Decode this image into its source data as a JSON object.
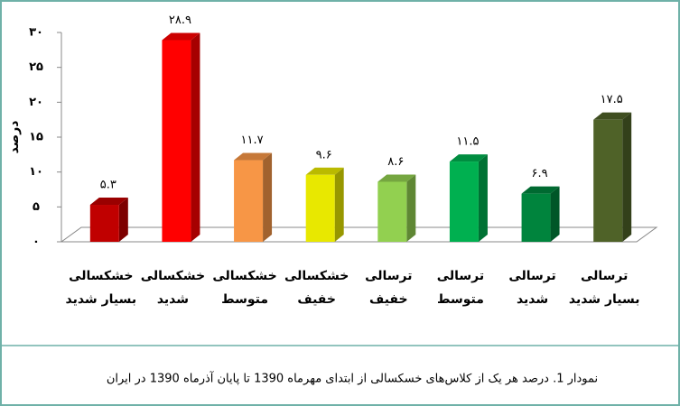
{
  "chart_data": {
    "type": "bar3d",
    "title": "نمودار 1. درصد هر یک از کلاس‌های خسکسالی از ابتدای مهرماه 1390 تا پایان آذرماه 1390 در ایران",
    "y_label": "درصد",
    "categories": [
      [
        "خشکسالی",
        "بسیار شدید"
      ],
      [
        "خشکسالی",
        "شدید"
      ],
      [
        "خشکسالی",
        "متوسط"
      ],
      [
        "خشکسالی",
        "خفیف"
      ],
      [
        "ترسالی",
        "خفیف"
      ],
      [
        "ترسالی",
        "متوسط"
      ],
      [
        "ترسالی",
        "شدید"
      ],
      [
        "ترسالی",
        "بسیار شدید"
      ]
    ],
    "values": [
      5.3,
      28.9,
      11.7,
      9.6,
      8.6,
      11.5,
      6.9,
      17.5
    ],
    "value_labels": [
      "۵.۳",
      "۲۸.۹",
      "۱۱.۷",
      "۹.۶",
      "۸.۶",
      "۱۱.۵",
      "۶.۹",
      "۱۷.۵"
    ],
    "colors": [
      "#c00000",
      "#ff0000",
      "#f79646",
      "#e8e800",
      "#92d050",
      "#00b050",
      "#00843d",
      "#4f6228"
    ],
    "ylim": [
      0,
      30
    ],
    "yticks": [
      {
        "value": 0,
        "label": "۰"
      },
      {
        "value": 5,
        "label": "۵"
      },
      {
        "value": 10,
        "label": "۱۰"
      },
      {
        "value": 15,
        "label": "۱۵"
      },
      {
        "value": 20,
        "label": "۲۰"
      },
      {
        "value": 25,
        "label": "۲۵"
      },
      {
        "value": 30,
        "label": "۳۰"
      }
    ]
  }
}
